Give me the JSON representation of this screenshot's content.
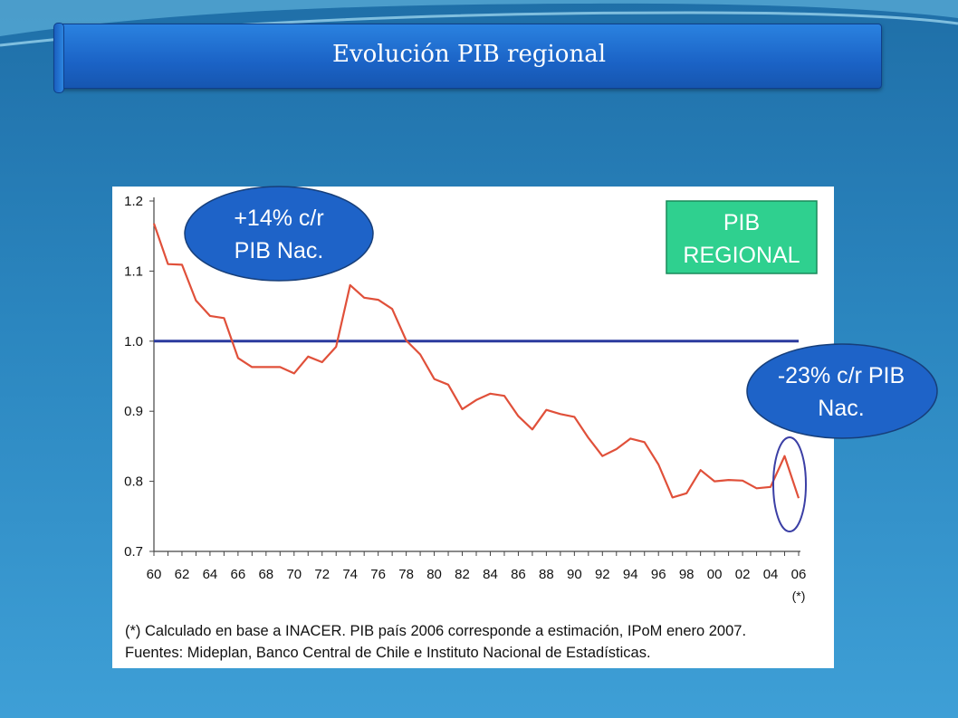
{
  "slide": {
    "title": "Evolución PIB regional"
  },
  "annotations": {
    "top_bubble": [
      "+14% c/r",
      "PIB Nac."
    ],
    "right_bubble": [
      "-23% c/r PIB",
      "Nac."
    ],
    "box": [
      "PIB",
      "REGIONAL"
    ]
  },
  "colors": {
    "line": "#e0503a",
    "reference": "#2b3a9e",
    "bubble": "#1e63c8",
    "box": "#2fd08f"
  },
  "chart_data": {
    "type": "line",
    "title": "",
    "xlabel": "",
    "ylabel": "",
    "ylim": [
      0.7,
      1.2
    ],
    "yticks": [
      "0.7",
      "0.8",
      "0.9",
      "1.0",
      "1.1",
      "1.2"
    ],
    "xtick_labels": [
      "60",
      "62",
      "64",
      "66",
      "68",
      "70",
      "72",
      "74",
      "76",
      "78",
      "80",
      "82",
      "84",
      "86",
      "88",
      "90",
      "92",
      "94",
      "96",
      "98",
      "00",
      "02",
      "04",
      "06"
    ],
    "xtick_footnote": "(*)",
    "reference_line": 1.0,
    "series": [
      {
        "x": [
          1960,
          1961,
          1962,
          1963,
          1964,
          1965,
          1966,
          1967,
          1968,
          1969,
          1970,
          1971,
          1972,
          1973,
          1974,
          1975,
          1976,
          1977,
          1978,
          1979,
          1980,
          1981,
          1982,
          1983,
          1984,
          1985,
          1986,
          1987,
          1988,
          1989,
          1990,
          1991,
          1992,
          1993,
          1994,
          1995,
          1996,
          1997,
          1998,
          1999,
          2000,
          2001,
          2002,
          2003,
          2004,
          2005,
          2006
        ],
        "values": [
          1.168,
          1.11,
          1.109,
          1.058,
          1.036,
          1.033,
          0.976,
          0.963,
          0.963,
          0.963,
          0.954,
          0.978,
          0.97,
          0.992,
          1.08,
          1.062,
          1.059,
          1.046,
          1.001,
          0.981,
          0.946,
          0.938,
          0.903,
          0.916,
          0.925,
          0.922,
          0.893,
          0.874,
          0.902,
          0.896,
          0.892,
          0.862,
          0.836,
          0.846,
          0.861,
          0.856,
          0.824,
          0.777,
          0.783,
          0.816,
          0.8,
          0.802,
          0.801,
          0.79,
          0.792,
          0.836,
          0.776
        ]
      }
    ]
  },
  "footnotes": {
    "line1": "(*) Calculado en base a INACER. PIB país 2006 corresponde a estimación, IPoM enero 2007.",
    "line2": "Fuentes: Mideplan, Banco Central de Chile e Instituto Nacional de Estadísticas."
  }
}
